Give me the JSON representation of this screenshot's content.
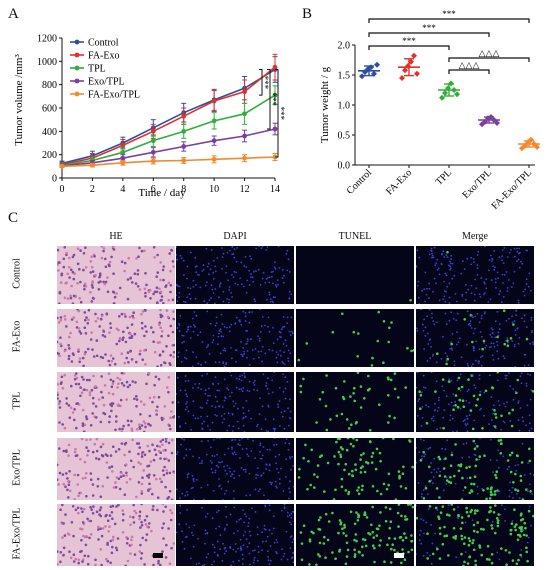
{
  "panels": {
    "a": {
      "letter": "A"
    },
    "b": {
      "letter": "B"
    },
    "c": {
      "letter": "C"
    }
  },
  "chart_data": [
    {
      "type": "line",
      "ylabel": "Tumor volume /mm³",
      "xlabel": "Time / day",
      "x": [
        0,
        2,
        4,
        6,
        8,
        10,
        12,
        14
      ],
      "xticks": [
        "0",
        "2",
        "4",
        "6",
        "8",
        "10",
        "12",
        "14"
      ],
      "yticks": [
        "0",
        "200",
        "400",
        "600",
        "800",
        "1000",
        "1200"
      ],
      "xlim": [
        0,
        14
      ],
      "ylim": [
        0,
        1200
      ],
      "legend_position": "top-left",
      "series": [
        {
          "name": "Control",
          "color": "#2d4fa3",
          "values": [
            125,
            190,
            300,
            430,
            560,
            670,
            770,
            930
          ],
          "err": [
            20,
            40,
            50,
            70,
            80,
            90,
            100,
            110
          ]
        },
        {
          "name": "FA-Exo",
          "color": "#e0312b",
          "values": [
            115,
            170,
            280,
            400,
            530,
            660,
            740,
            950
          ],
          "err": [
            20,
            40,
            50,
            60,
            70,
            90,
            100,
            110
          ]
        },
        {
          "name": "TPL",
          "color": "#2fae3a",
          "values": [
            110,
            150,
            220,
            320,
            400,
            490,
            550,
            710
          ],
          "err": [
            15,
            30,
            40,
            50,
            60,
            70,
            90,
            80
          ]
        },
        {
          "name": "Exo/TPL",
          "color": "#7b3fa0",
          "values": [
            105,
            130,
            170,
            220,
            270,
            320,
            360,
            420
          ],
          "err": [
            15,
            20,
            30,
            40,
            40,
            40,
            50,
            50
          ]
        },
        {
          "name": "FA-Exo/TPL",
          "color": "#f08a2c",
          "values": [
            100,
            110,
            130,
            145,
            150,
            160,
            170,
            180
          ],
          "err": [
            10,
            15,
            20,
            25,
            25,
            30,
            30,
            30
          ]
        }
      ],
      "annotations": [
        "***",
        "***",
        "***"
      ]
    },
    {
      "type": "scatter",
      "ylabel": "Tumor weight / g",
      "categories": [
        "Control",
        "FA-Exo",
        "TPL",
        "Exo/TPL",
        "FA-Exo/TPL"
      ],
      "yticks": [
        "0.0",
        "0.5",
        "1.0",
        "1.5",
        "2.0"
      ],
      "ylim": [
        0,
        2.0
      ],
      "groups": [
        {
          "name": "Control",
          "color": "#2d4fa3",
          "mean": 1.57,
          "sd": 0.08,
          "points": [
            1.48,
            1.55,
            1.6,
            1.63,
            1.52,
            1.67
          ]
        },
        {
          "name": "FA-Exo",
          "color": "#e0312b",
          "mean": 1.63,
          "sd": 0.14,
          "points": [
            1.45,
            1.58,
            1.65,
            1.72,
            1.82,
            1.52
          ]
        },
        {
          "name": "TPL",
          "color": "#2fae3a",
          "mean": 1.25,
          "sd": 0.1,
          "points": [
            1.12,
            1.2,
            1.28,
            1.36,
            1.25,
            1.18
          ]
        },
        {
          "name": "Exo/TPL",
          "color": "#7b3fa0",
          "mean": 0.75,
          "sd": 0.05,
          "points": [
            0.68,
            0.72,
            0.78,
            0.8,
            0.75,
            0.7
          ]
        },
        {
          "name": "FA-Exo/TPL",
          "color": "#f08a2c",
          "mean": 0.35,
          "sd": 0.05,
          "points": [
            0.28,
            0.32,
            0.38,
            0.42,
            0.35,
            0.3
          ]
        }
      ],
      "brackets": [
        {
          "from": "Control",
          "to": "FA-Exo/TPL",
          "label": "***"
        },
        {
          "from": "Control",
          "to": "Exo/TPL",
          "label": "***"
        },
        {
          "from": "Control",
          "to": "TPL",
          "label": "***"
        },
        {
          "from": "TPL",
          "to": "FA-Exo/TPL",
          "label": "△△△"
        },
        {
          "from": "TPL",
          "to": "Exo/TPL",
          "label": "△△△"
        }
      ]
    }
  ],
  "micro": {
    "columns": [
      "HE",
      "DAPI",
      "TUNEL",
      "Merge"
    ],
    "rows": [
      "Control",
      "FA-Exo",
      "TPL",
      "Exo/TPL",
      "FA-Exo/TPL"
    ],
    "tunel_intensity": [
      0.02,
      0.15,
      0.35,
      0.65,
      0.95
    ]
  }
}
